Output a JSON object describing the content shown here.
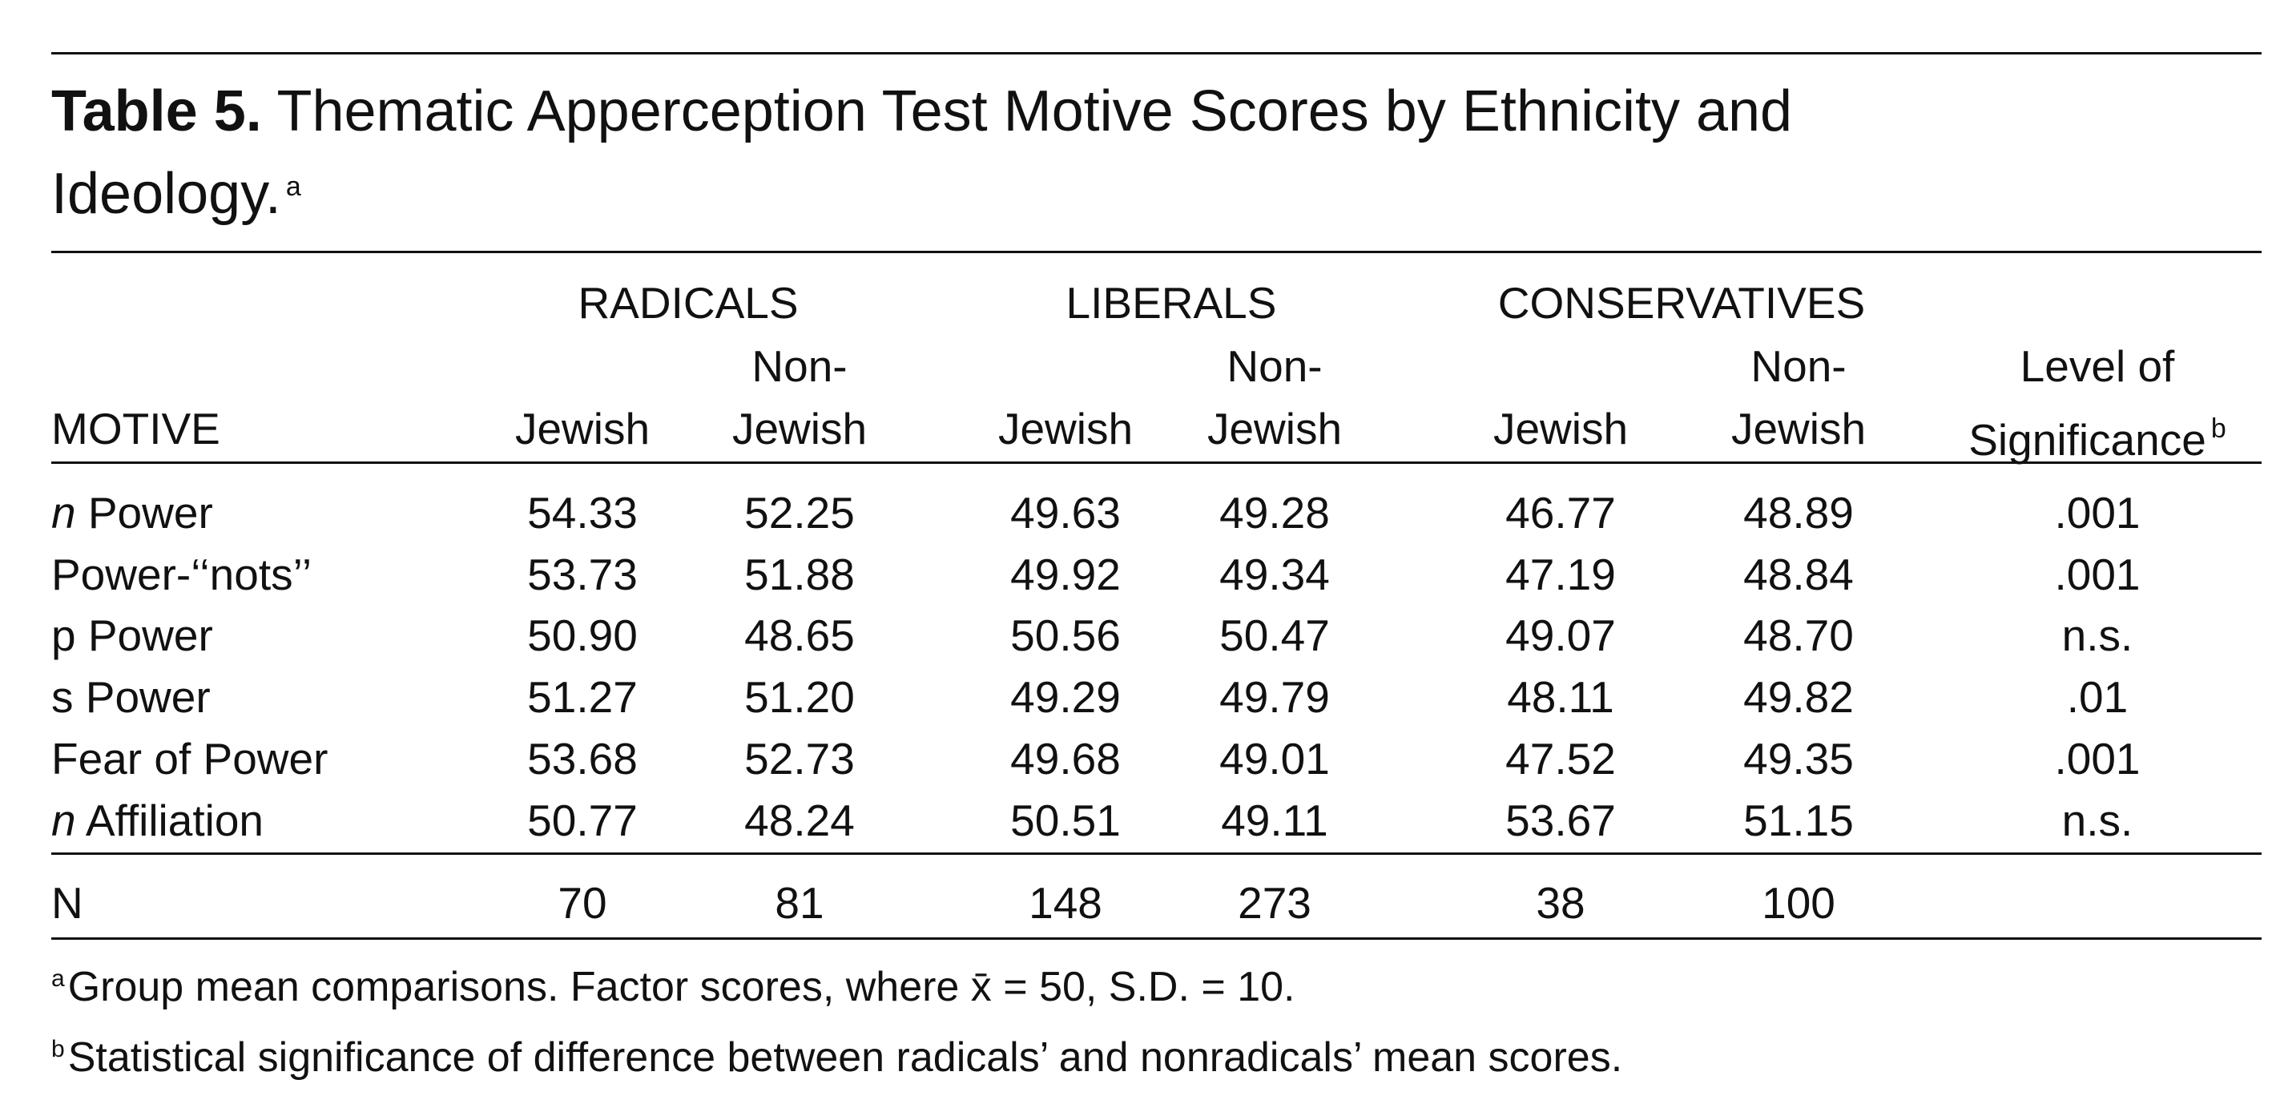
{
  "caption": {
    "label": "Table 5.",
    "text": "Thematic Apperception Test Motive Scores by Ethnicity and Ideology.",
    "note_mark": "a"
  },
  "table": {
    "groups": [
      "RADICALS",
      "LIBERALS",
      "CONSERVATIVES"
    ],
    "motive_header": "MOTIVE",
    "columns": [
      {
        "lines": [
          "Jewish"
        ]
      },
      {
        "lines": [
          "Non-",
          "Jewish"
        ]
      },
      {
        "lines": [
          "Jewish"
        ]
      },
      {
        "lines": [
          "Non-",
          "Jewish"
        ]
      },
      {
        "lines": [
          "Jewish"
        ]
      },
      {
        "lines": [
          "Non-",
          "Jewish"
        ]
      },
      {
        "lines": [
          "Level of",
          "Significance"
        ],
        "note_mark": "b"
      }
    ],
    "rows": [
      {
        "prefix": "n",
        "motive": "Power",
        "cells": [
          "54.33",
          "52.25",
          "49.63",
          "49.28",
          "46.77",
          "48.89",
          ".001"
        ]
      },
      {
        "motive": "Power-‘‘nots’’",
        "cells": [
          "53.73",
          "51.88",
          "49.92",
          "49.34",
          "47.19",
          "48.84",
          ".001"
        ]
      },
      {
        "motive": "p Power",
        "cells": [
          "50.90",
          "48.65",
          "50.56",
          "50.47",
          "49.07",
          "48.70",
          "n.s."
        ]
      },
      {
        "motive": "s Power",
        "cells": [
          "51.27",
          "51.20",
          "49.29",
          "49.79",
          "48.11",
          "49.82",
          ".01"
        ]
      },
      {
        "motive": "Fear of Power",
        "cells": [
          "53.68",
          "52.73",
          "49.68",
          "49.01",
          "47.52",
          "49.35",
          ".001"
        ]
      },
      {
        "prefix": "n",
        "motive": "Affiliation",
        "cells": [
          "50.77",
          "48.24",
          "50.51",
          "49.11",
          "53.67",
          "51.15",
          "n.s."
        ]
      }
    ],
    "n_row": {
      "label": "N",
      "cells": [
        "70",
        "81",
        "148",
        "273",
        "38",
        "100"
      ]
    }
  },
  "footnotes": [
    {
      "mark": "a",
      "text": "Group mean comparisons. Factor scores, where x̄ = 50, S.D. = 10."
    },
    {
      "mark": "b",
      "text": "Statistical significance of difference between radicals’ and nonradicals’ mean scores."
    }
  ]
}
